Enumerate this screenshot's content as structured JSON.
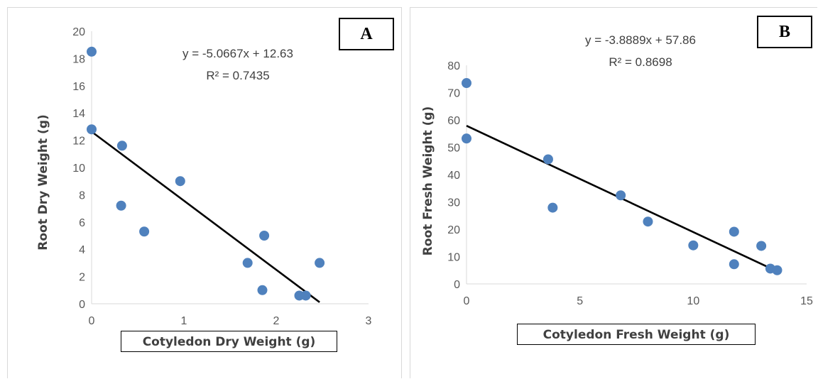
{
  "chart_data": [
    {
      "type": "scatter",
      "panel_label": "A",
      "xlabel": "Cotyledon Dry Weight (g)",
      "ylabel": "Root Dry Weight (g)",
      "xlim": [
        0,
        3
      ],
      "ylim": [
        0,
        20
      ],
      "xticks": [
        0,
        1,
        2,
        3
      ],
      "yticks": [
        0,
        2,
        4,
        6,
        8,
        10,
        12,
        14,
        16,
        18,
        20
      ],
      "grid": false,
      "points": [
        {
          "x": 0,
          "y": 18.5
        },
        {
          "x": 0,
          "y": 12.8
        },
        {
          "x": 0.33,
          "y": 11.6
        },
        {
          "x": 0.32,
          "y": 7.2
        },
        {
          "x": 0.57,
          "y": 5.3
        },
        {
          "x": 0.96,
          "y": 9.0
        },
        {
          "x": 1.69,
          "y": 3.0
        },
        {
          "x": 1.87,
          "y": 5.0
        },
        {
          "x": 1.85,
          "y": 1.0
        },
        {
          "x": 2.25,
          "y": 0.6
        },
        {
          "x": 2.32,
          "y": 0.6
        },
        {
          "x": 2.47,
          "y": 3.0
        }
      ],
      "trendline": {
        "slope": -5.0667,
        "intercept": 12.63,
        "x_range": [
          0,
          2.47
        ]
      },
      "equation_text": "y = -5.0667x + 12.63",
      "r2_text": "R² = 0.7435",
      "colors": {
        "marker": "#4f81bd",
        "trendline": "#000000"
      }
    },
    {
      "type": "scatter",
      "panel_label": "B",
      "xlabel": "Cotyledon Fresh Weight (g)",
      "ylabel": "Root Fresh Weight (g)",
      "xlim": [
        0,
        15
      ],
      "ylim": [
        0,
        80
      ],
      "xticks": [
        0,
        5,
        10,
        15
      ],
      "yticks": [
        0,
        10,
        20,
        30,
        40,
        50,
        60,
        70,
        80
      ],
      "grid": false,
      "points": [
        {
          "x": 0,
          "y": 73.5
        },
        {
          "x": 0,
          "y": 53.2
        },
        {
          "x": 3.6,
          "y": 45.6
        },
        {
          "x": 3.8,
          "y": 27.9
        },
        {
          "x": 6.8,
          "y": 32.4
        },
        {
          "x": 8.0,
          "y": 22.8
        },
        {
          "x": 10.0,
          "y": 14.1
        },
        {
          "x": 11.8,
          "y": 19.1
        },
        {
          "x": 11.8,
          "y": 7.2
        },
        {
          "x": 13.0,
          "y": 13.9
        },
        {
          "x": 13.4,
          "y": 5.6
        },
        {
          "x": 13.7,
          "y": 5.0
        }
      ],
      "trendline": {
        "slope": -3.8889,
        "intercept": 57.86,
        "x_range": [
          0,
          13.7
        ]
      },
      "equation_text": "y = -3.8889x + 57.86",
      "r2_text": "R² = 0.8698",
      "colors": {
        "marker": "#4f81bd",
        "trendline": "#000000"
      }
    }
  ]
}
